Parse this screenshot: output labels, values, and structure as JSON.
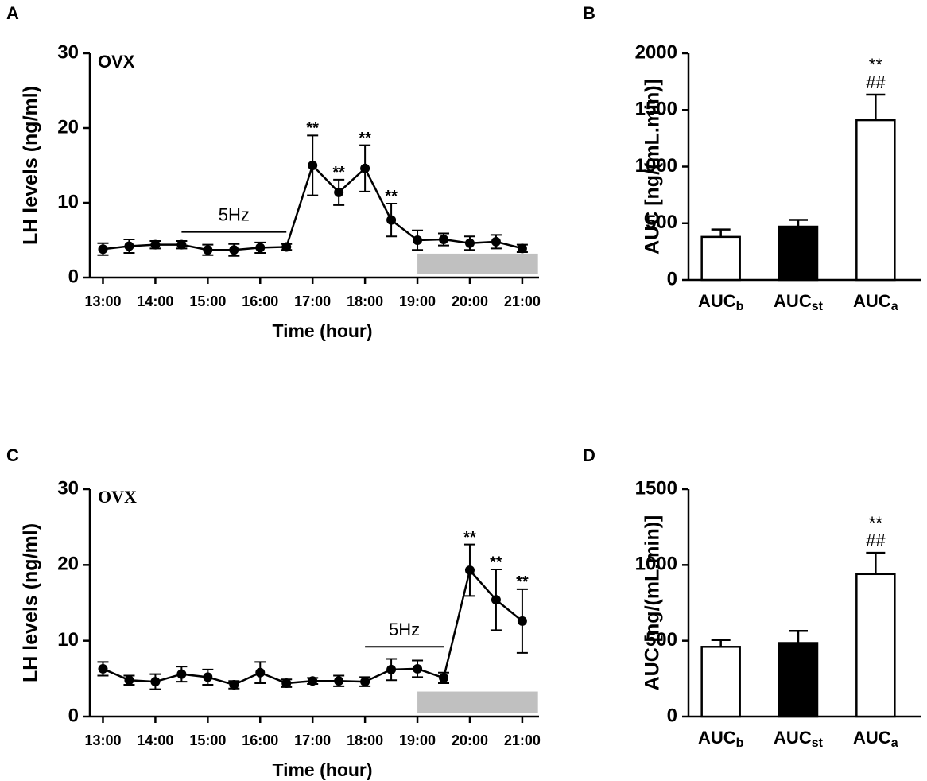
{
  "chart_data": [
    {
      "type": "line",
      "panel": "A",
      "title": "OVX",
      "title_font": "sans-serif",
      "xlabel": "Time (hour)",
      "ylabel": "LH levels (ng/ml)",
      "x": [
        13,
        13.5,
        14,
        14.5,
        15,
        15.5,
        16,
        16.5,
        17,
        17.5,
        18,
        18.5,
        19,
        19.5,
        20,
        20.5,
        21
      ],
      "series": [
        {
          "color": "#000000",
          "values": [
            3.8,
            4.2,
            4.4,
            4.4,
            3.7,
            3.7,
            4.0,
            4.1,
            15.0,
            11.4,
            14.6,
            7.7,
            5.0,
            5.1,
            4.6,
            4.8,
            3.9
          ],
          "errors": [
            0.8,
            0.9,
            0.5,
            0.5,
            0.7,
            0.8,
            0.7,
            0.4,
            4.0,
            1.7,
            3.1,
            2.2,
            1.3,
            0.8,
            0.9,
            0.9,
            0.5
          ],
          "point_labels": [
            null,
            null,
            null,
            null,
            null,
            null,
            null,
            null,
            "**",
            "**",
            "**",
            "**",
            null,
            null,
            null,
            null,
            null
          ]
        }
      ],
      "stimulus": {
        "label": "5Hz",
        "start": 14.5,
        "end": 16.5,
        "level": 6.1
      },
      "shaded": {
        "start": 19,
        "end": 21.3,
        "low": 0.5,
        "high": 3.2,
        "color": "#c0c0c0"
      },
      "xlim": [
        12.75,
        21.32
      ],
      "xticks": [
        {
          "value": 13,
          "label": "13:00"
        },
        {
          "value": 14,
          "label": "14:00"
        },
        {
          "value": 15,
          "label": "15:00"
        },
        {
          "value": 16,
          "label": "16:00"
        },
        {
          "value": 17,
          "label": "17:00"
        },
        {
          "value": 18,
          "label": "18:00"
        },
        {
          "value": 19,
          "label": "19:00"
        },
        {
          "value": 20,
          "label": "20:00"
        },
        {
          "value": 21,
          "label": "21:00"
        }
      ],
      "ylim": [
        0,
        30
      ],
      "yticks": [
        0,
        10,
        20,
        30
      ]
    },
    {
      "type": "bar",
      "panel": "B",
      "ylabel": "AUC [ng/(mL.min)]",
      "categories": [
        [
          "AUC",
          "b"
        ],
        [
          "AUC",
          "st"
        ],
        [
          "AUC",
          "a"
        ]
      ],
      "values": [
        380,
        470,
        1410
      ],
      "errors": [
        65,
        60,
        225
      ],
      "colors": [
        "#ffffff",
        "#000000",
        "#ffffff"
      ],
      "annotations": [
        null,
        null,
        [
          "**",
          "##"
        ]
      ],
      "ylim": [
        0,
        2000
      ],
      "yticks": [
        0,
        500,
        1000,
        1500,
        2000
      ]
    },
    {
      "type": "line",
      "panel": "C",
      "title": "OVX",
      "title_font": "serif",
      "xlabel": "Time (hour)",
      "ylabel": "LH levels (ng/ml)",
      "x": [
        13,
        13.5,
        14,
        14.5,
        15,
        15.5,
        16,
        16.5,
        17,
        17.5,
        18,
        18.5,
        19,
        19.5,
        20,
        20.5,
        21
      ],
      "series": [
        {
          "color": "#000000",
          "values": [
            6.3,
            4.8,
            4.6,
            5.6,
            5.2,
            4.2,
            5.8,
            4.4,
            4.7,
            4.7,
            4.6,
            6.2,
            6.3,
            5.1,
            19.3,
            15.4,
            12.6
          ],
          "errors": [
            0.9,
            0.6,
            1.0,
            1.0,
            1.0,
            0.5,
            1.4,
            0.5,
            0.4,
            0.7,
            0.6,
            1.4,
            1.1,
            0.7,
            3.4,
            4.0,
            4.2
          ],
          "point_labels": [
            null,
            null,
            null,
            null,
            null,
            null,
            null,
            null,
            null,
            null,
            null,
            null,
            null,
            null,
            "**",
            "**",
            "**"
          ]
        }
      ],
      "stimulus": {
        "label": "5Hz",
        "start": 18,
        "end": 19.5,
        "level": 9.2
      },
      "shaded": {
        "start": 19,
        "end": 21.3,
        "low": 0.5,
        "high": 3.3,
        "color": "#c0c0c0"
      },
      "xlim": [
        12.75,
        21.32
      ],
      "xticks": [
        {
          "value": 13,
          "label": "13:00"
        },
        {
          "value": 14,
          "label": "14:00"
        },
        {
          "value": 15,
          "label": "15:00"
        },
        {
          "value": 16,
          "label": "16:00"
        },
        {
          "value": 17,
          "label": "17:00"
        },
        {
          "value": 18,
          "label": "18:00"
        },
        {
          "value": 19,
          "label": "19:00"
        },
        {
          "value": 20,
          "label": "20:00"
        },
        {
          "value": 21,
          "label": "21:00"
        }
      ],
      "ylim": [
        0,
        30
      ],
      "yticks": [
        0,
        10,
        20,
        30
      ]
    },
    {
      "type": "bar",
      "panel": "D",
      "ylabel": "AUC [ng/(mL.min)]",
      "categories": [
        [
          "AUC",
          "b"
        ],
        [
          "AUC",
          "st"
        ],
        [
          "AUC",
          "a"
        ]
      ],
      "values": [
        460,
        485,
        940
      ],
      "errors": [
        45,
        80,
        140
      ],
      "colors": [
        "#ffffff",
        "#000000",
        "#ffffff"
      ],
      "annotations": [
        null,
        null,
        [
          "**",
          "##"
        ]
      ],
      "ylim": [
        0,
        1500
      ],
      "yticks": [
        0,
        500,
        1000,
        1500
      ]
    }
  ]
}
